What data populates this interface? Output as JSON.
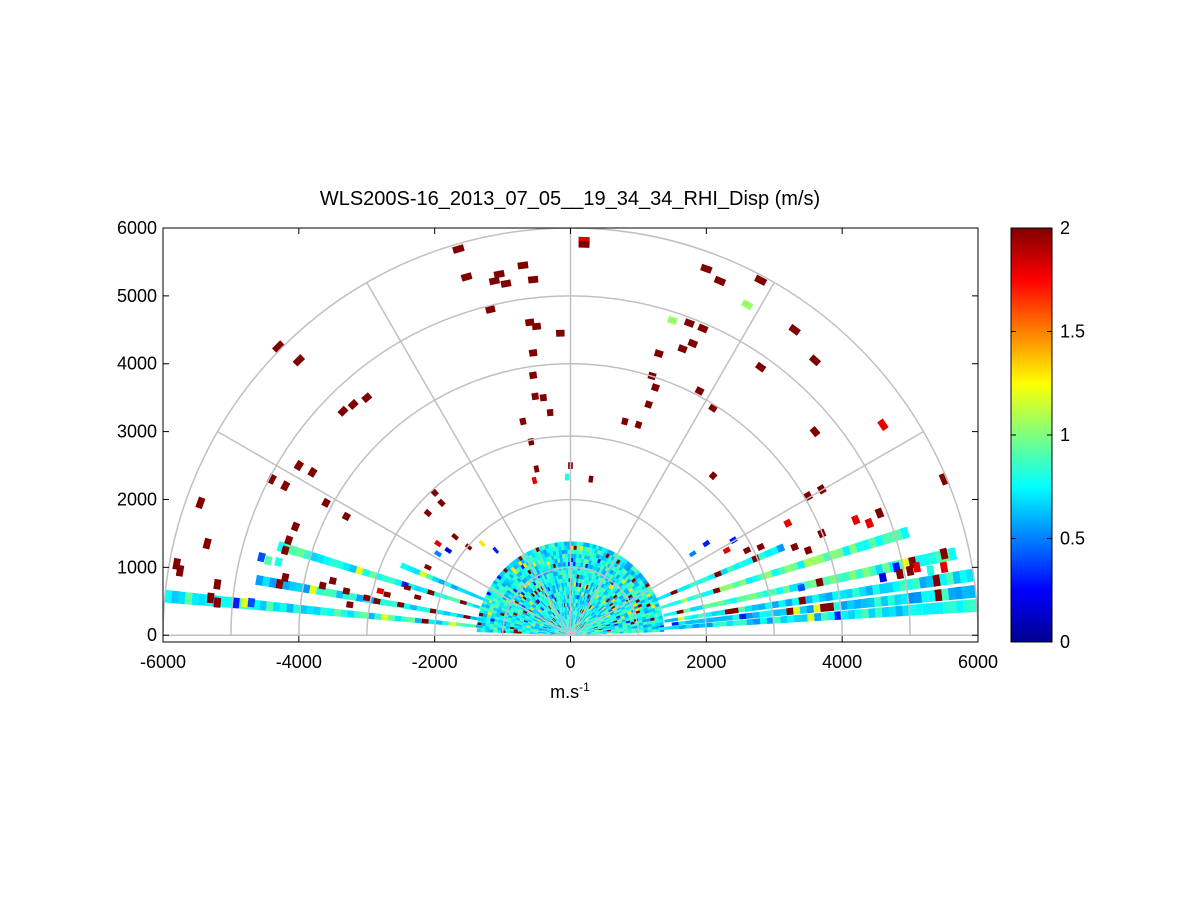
{
  "chart_data": {
    "type": "heatmap",
    "subtype": "polar-rhi",
    "title": "WLS200S-16_2013_07_05__19_34_34_RHI_Disp (m/s)",
    "xlabel_base": "m.s",
    "xlabel_exp": "-1",
    "ylabel": "",
    "xlim": [
      -6000,
      6000
    ],
    "ylim": [
      -100,
      6000
    ],
    "xticks": [
      "-6000",
      "-4000",
      "-2000",
      "0",
      "2000",
      "4000",
      "6000"
    ],
    "yticks": [
      "0",
      "1000",
      "2000",
      "3000",
      "4000",
      "5000",
      "6000"
    ],
    "grid": {
      "range_rings": [
        1000,
        2000,
        3000,
        4000,
        5000,
        6000
      ],
      "spokes_deg": [
        0,
        30,
        60,
        90,
        120,
        150,
        180
      ]
    },
    "colorbar": {
      "colormap": "jet",
      "range": [
        0,
        2
      ],
      "ticks": [
        "0",
        "0.5",
        "1",
        "1.5",
        "2"
      ]
    },
    "dense_region": {
      "max_range": 1350,
      "value_center": 0.75,
      "value_spread": 0.2
    },
    "beams": [
      {
        "elev": 4.2,
        "from": 1300,
        "to": 6000,
        "value": 0.72
      },
      {
        "elev": 6.2,
        "from": 1500,
        "to": 6000,
        "value": 0.7
      },
      {
        "elev": 8.5,
        "from": 1400,
        "to": 6000,
        "value": 0.75
      },
      {
        "elev": 12.0,
        "from": 1400,
        "to": 5800,
        "value": 0.85
      },
      {
        "elev": 17.0,
        "from": 1300,
        "to": 5200,
        "value": 0.9
      },
      {
        "elev": 22.5,
        "from": 1300,
        "to": 3400,
        "value": 0.7
      },
      {
        "elev": 157.5,
        "from": 1300,
        "to": 2700,
        "value": 0.75
      },
      {
        "elev": 163.0,
        "from": 1300,
        "to": 4500,
        "value": 0.8
      },
      {
        "elev": 170.0,
        "from": 1300,
        "to": 4700,
        "value": 0.72
      },
      {
        "elev": 174.5,
        "from": 1300,
        "to": 6000,
        "value": 0.78
      }
    ],
    "sparse_cells": [
      {
        "x": 200,
        "y": 5820,
        "v": 1.8
      },
      {
        "x": 200,
        "y": 5760,
        "v": 2
      },
      {
        "x": -1650,
        "y": 5690,
        "v": 2
      },
      {
        "x": -1530,
        "y": 5280,
        "v": 2
      },
      {
        "x": -1120,
        "y": 5220,
        "v": 2
      },
      {
        "x": -1050,
        "y": 5320,
        "v": 2
      },
      {
        "x": -950,
        "y": 5180,
        "v": 2
      },
      {
        "x": -700,
        "y": 5450,
        "v": 2
      },
      {
        "x": -550,
        "y": 5240,
        "v": 2
      },
      {
        "x": -1180,
        "y": 4800,
        "v": 2
      },
      {
        "x": -600,
        "y": 4610,
        "v": 2
      },
      {
        "x": -500,
        "y": 4550,
        "v": 2
      },
      {
        "x": -150,
        "y": 4450,
        "v": 2
      },
      {
        "x": -550,
        "y": 4160,
        "v": 2
      },
      {
        "x": -550,
        "y": 3830,
        "v": 2
      },
      {
        "x": -520,
        "y": 3520,
        "v": 2
      },
      {
        "x": -400,
        "y": 3500,
        "v": 2
      },
      {
        "x": -300,
        "y": 3280,
        "v": 2
      },
      {
        "x": -700,
        "y": 3150,
        "v": 2
      },
      {
        "x": -580,
        "y": 2850,
        "v": 2
      },
      {
        "x": -500,
        "y": 2450,
        "v": 2
      },
      {
        "x": -530,
        "y": 2280,
        "v": 1.8
      },
      {
        "x": 0,
        "y": 2500,
        "v": 2
      },
      {
        "x": -50,
        "y": 2330,
        "v": 0.8
      },
      {
        "x": 300,
        "y": 2300,
        "v": 2
      },
      {
        "x": 2000,
        "y": 5400,
        "v": 2
      },
      {
        "x": 2200,
        "y": 5220,
        "v": 2
      },
      {
        "x": 2800,
        "y": 5230,
        "v": 2
      },
      {
        "x": 2600,
        "y": 4870,
        "v": 1.05
      },
      {
        "x": 1500,
        "y": 4640,
        "v": 1.05
      },
      {
        "x": 1750,
        "y": 4600,
        "v": 2
      },
      {
        "x": 1950,
        "y": 4520,
        "v": 2
      },
      {
        "x": 1800,
        "y": 4300,
        "v": 2
      },
      {
        "x": 1650,
        "y": 4220,
        "v": 2
      },
      {
        "x": 1300,
        "y": 4150,
        "v": 2
      },
      {
        "x": 1200,
        "y": 3820,
        "v": 2
      },
      {
        "x": 1250,
        "y": 3650,
        "v": 2
      },
      {
        "x": 1150,
        "y": 3400,
        "v": 2
      },
      {
        "x": 800,
        "y": 3150,
        "v": 2
      },
      {
        "x": 1000,
        "y": 3100,
        "v": 2
      },
      {
        "x": 1900,
        "y": 3600,
        "v": 2
      },
      {
        "x": 2100,
        "y": 3350,
        "v": 2
      },
      {
        "x": 2800,
        "y": 3950,
        "v": 2
      },
      {
        "x": 3300,
        "y": 4500,
        "v": 2
      },
      {
        "x": 3600,
        "y": 4050,
        "v": 2
      },
      {
        "x": 3600,
        "y": 3000,
        "v": 2
      },
      {
        "x": 4600,
        "y": 3100,
        "v": 1.8
      },
      {
        "x": 2100,
        "y": 2350,
        "v": 2
      },
      {
        "x": 3500,
        "y": 2050,
        "v": 2
      },
      {
        "x": 3700,
        "y": 2150,
        "v": 2
      },
      {
        "x": 4550,
        "y": 1800,
        "v": 2
      },
      {
        "x": 4400,
        "y": 1650,
        "v": 1.8
      },
      {
        "x": 4200,
        "y": 1700,
        "v": 1.8
      },
      {
        "x": 5500,
        "y": 2300,
        "v": 2
      },
      {
        "x": -4000,
        "y": 4050,
        "v": 2
      },
      {
        "x": -4300,
        "y": 4250,
        "v": 2
      },
      {
        "x": -3200,
        "y": 3400,
        "v": 2
      },
      {
        "x": -3000,
        "y": 3500,
        "v": 2
      },
      {
        "x": -3350,
        "y": 3300,
        "v": 2
      },
      {
        "x": -4000,
        "y": 2500,
        "v": 2
      },
      {
        "x": -3800,
        "y": 2400,
        "v": 2
      },
      {
        "x": -4400,
        "y": 2300,
        "v": 2
      },
      {
        "x": -4200,
        "y": 2200,
        "v": 2
      },
      {
        "x": -3600,
        "y": 1950,
        "v": 2
      },
      {
        "x": -3300,
        "y": 1750,
        "v": 2
      },
      {
        "x": -2000,
        "y": 2100,
        "v": 2
      },
      {
        "x": -1900,
        "y": 1950,
        "v": 2
      },
      {
        "x": -2100,
        "y": 1800,
        "v": 2
      },
      {
        "x": -4050,
        "y": 1600,
        "v": 2
      },
      {
        "x": -4150,
        "y": 1400,
        "v": 2
      },
      {
        "x": -4200,
        "y": 1250,
        "v": 2
      },
      {
        "x": -4550,
        "y": 1150,
        "v": 0.4
      },
      {
        "x": -4450,
        "y": 1100,
        "v": 0.9
      },
      {
        "x": -4300,
        "y": 1080,
        "v": 0.8
      },
      {
        "x": -5800,
        "y": 1050,
        "v": 2
      },
      {
        "x": -5750,
        "y": 950,
        "v": 2
      },
      {
        "x": -5350,
        "y": 1350,
        "v": 2
      },
      {
        "x": -5450,
        "y": 1950,
        "v": 2
      },
      {
        "x": -5200,
        "y": 750,
        "v": 2
      },
      {
        "x": -5300,
        "y": 550,
        "v": 2
      },
      {
        "x": -5200,
        "y": 480,
        "v": 2
      },
      {
        "x": -4200,
        "y": 850,
        "v": 2
      },
      {
        "x": -3650,
        "y": 730,
        "v": 2
      },
      {
        "x": -3500,
        "y": 800,
        "v": 2
      },
      {
        "x": -3300,
        "y": 650,
        "v": 2
      },
      {
        "x": 5000,
        "y": 950,
        "v": 2
      },
      {
        "x": 5100,
        "y": 1000,
        "v": 1.8
      },
      {
        "x": 5300,
        "y": 950,
        "v": 0.8
      },
      {
        "x": 5500,
        "y": 1200,
        "v": 2
      },
      {
        "x": 5500,
        "y": 1000,
        "v": 1.8
      },
      {
        "x": 4800,
        "y": 1000,
        "v": 0.3
      },
      {
        "x": 4850,
        "y": 900,
        "v": 2
      },
      {
        "x": 4600,
        "y": 850,
        "v": 0.2
      },
      {
        "x": 3400,
        "y": 700,
        "v": 0.4
      },
      {
        "x": 2800,
        "y": 1300,
        "v": 2
      },
      {
        "x": 2600,
        "y": 1250,
        "v": 2
      },
      {
        "x": 3300,
        "y": 1300,
        "v": 2
      },
      {
        "x": 3500,
        "y": 1250,
        "v": 2
      },
      {
        "x": 3700,
        "y": 1500,
        "v": 2
      },
      {
        "x": 3200,
        "y": 1650,
        "v": 1.8
      },
      {
        "x": 2400,
        "y": 1400,
        "v": 0.3
      },
      {
        "x": 2300,
        "y": 1250,
        "v": 1.8
      },
      {
        "x": 1800,
        "y": 1200,
        "v": 0.5
      },
      {
        "x": 2000,
        "y": 1350,
        "v": 0.3
      },
      {
        "x": -1700,
        "y": 1450,
        "v": 2
      },
      {
        "x": -1500,
        "y": 1300,
        "v": 2
      },
      {
        "x": -1800,
        "y": 1250,
        "v": 0.2
      },
      {
        "x": -1950,
        "y": 1350,
        "v": 1.8
      },
      {
        "x": -1300,
        "y": 1350,
        "v": 1.3
      },
      {
        "x": -1100,
        "y": 1250,
        "v": 0.3
      },
      {
        "x": -1950,
        "y": 1200,
        "v": 0.5
      },
      {
        "x": -2100,
        "y": 1000,
        "v": 2
      },
      {
        "x": -2400,
        "y": 700,
        "v": 2
      },
      {
        "x": -2700,
        "y": 600,
        "v": 2
      },
      {
        "x": -2250,
        "y": 560,
        "v": 2
      },
      {
        "x": -3000,
        "y": 550,
        "v": 2
      },
      {
        "x": -2850,
        "y": 500,
        "v": 2
      },
      {
        "x": -3250,
        "y": 450,
        "v": 2
      },
      {
        "x": -2800,
        "y": 650,
        "v": 1.8
      },
      {
        "x": -2500,
        "y": 450,
        "v": 2
      },
      {
        "x": -4800,
        "y": 480,
        "v": 1.2
      },
      {
        "x": -4700,
        "y": 480,
        "v": 0.4
      }
    ]
  }
}
